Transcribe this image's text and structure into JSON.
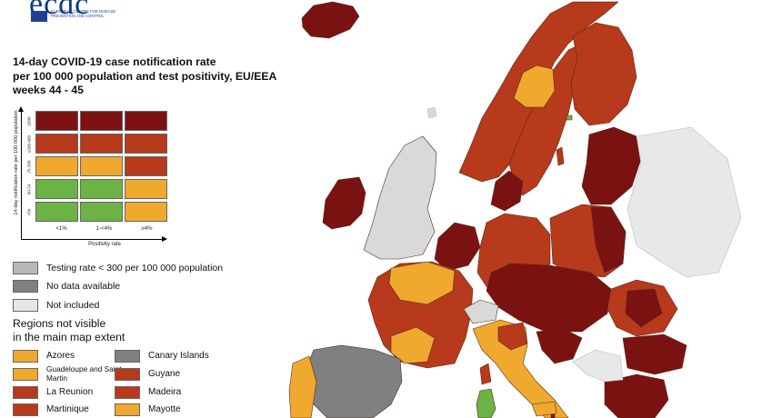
{
  "header": {
    "logo_text": "ecdc",
    "logo_subtitle": "EUROPEAN CENTRE FOR DISEASE PREVENTION AND CONTROL"
  },
  "title": {
    "line1": "14-day COVID-19 case notification rate",
    "line2": "per 100 000 population and test positivity, EU/EEA",
    "line3": "weeks 44 - 45"
  },
  "matrix": {
    "y_axis_label": "14-day notification rate per 100 000 population",
    "x_axis_label": "Positivity rate",
    "row_labels": [
      "≥500",
      "≥200-499",
      "75-200",
      "50-74",
      "<50"
    ],
    "col_labels": [
      "<1%",
      "1-<4%",
      "≥4%"
    ],
    "colors": [
      [
        "#7a1212",
        "#7a1212",
        "#7a1212"
      ],
      [
        "#b63a1b",
        "#b63a1b",
        "#b63a1b"
      ],
      [
        "#efa92f",
        "#efa92f",
        "#b63a1b"
      ],
      [
        "#6ab344",
        "#6ab344",
        "#efa92f"
      ],
      [
        "#6ab344",
        "#6ab344",
        "#efa92f"
      ]
    ]
  },
  "legend": {
    "items": [
      {
        "label": "Testing rate < 300 per 100 000 population",
        "color": "#b8b8b8"
      },
      {
        "label": "No data available",
        "color": "#808080"
      },
      {
        "label": "Not included",
        "color": "#e6e6e6"
      }
    ]
  },
  "regions": {
    "title_line1": "Regions not visible",
    "title_line2": "in the main map extent",
    "items": [
      {
        "label": "Azores",
        "color": "#efa92f"
      },
      {
        "label": "Canary Islands",
        "color": "#808080"
      },
      {
        "label": "Guadeloupe and Saint Martin",
        "color": "#efa92f"
      },
      {
        "label": "Guyane",
        "color": "#b63a1b"
      },
      {
        "label": "La Reunion",
        "color": "#b63a1b"
      },
      {
        "label": "Madeira",
        "color": "#b63a1b"
      },
      {
        "label": "Martinique",
        "color": "#b63a1b"
      },
      {
        "label": "Mayotte",
        "color": "#efa92f"
      }
    ]
  },
  "map_colors": {
    "sea": "#ffffff",
    "dark_red": "#7a1212",
    "red": "#b63a1b",
    "orange": "#efa92f",
    "green": "#6ab344",
    "grey": "#808080",
    "light_grey": "#d9d9d9",
    "border": "#5a2a1a"
  }
}
